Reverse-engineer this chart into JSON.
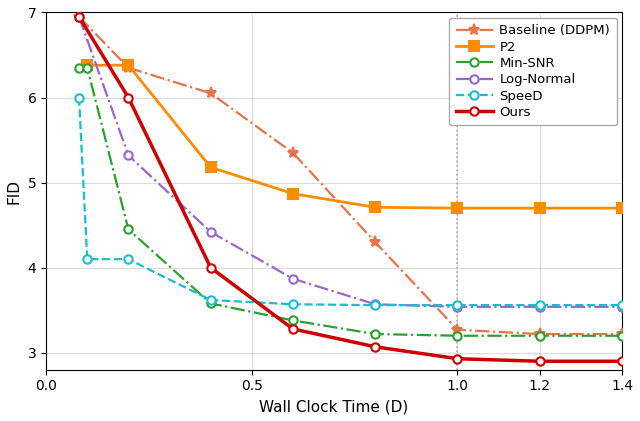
{
  "title": "",
  "xlabel": "Wall Clock Time (D)",
  "ylabel": "FID",
  "xlim": [
    0.0,
    1.4
  ],
  "ylim": [
    2.8,
    7.0
  ],
  "yticks": [
    3,
    4,
    5,
    6,
    7
  ],
  "xticks": [
    0.0,
    0.5,
    1.0,
    1.2,
    1.4
  ],
  "vline_x": 1.0,
  "series": [
    {
      "label": "Baseline (DDPM)",
      "color": "#E8734A",
      "linestyle": "-.",
      "marker": "*",
      "markersize": 8,
      "linewidth": 1.6,
      "markerfilled": true,
      "x": [
        0.08,
        0.2,
        0.4,
        0.6,
        0.8,
        1.0,
        1.2,
        1.4
      ],
      "y": [
        6.95,
        6.35,
        6.05,
        5.35,
        4.3,
        3.27,
        3.22,
        3.22
      ]
    },
    {
      "label": "P2",
      "color": "#FF8C00",
      "linestyle": "-",
      "marker": "s",
      "markersize": 7,
      "linewidth": 2.0,
      "markerfilled": true,
      "x": [
        0.1,
        0.2,
        0.4,
        0.6,
        0.8,
        1.0,
        1.2,
        1.4
      ],
      "y": [
        6.38,
        6.38,
        5.18,
        4.87,
        4.71,
        4.7,
        4.7,
        4.7
      ]
    },
    {
      "label": "Min-SNR",
      "color": "#2CA02C",
      "linestyle": "-.",
      "marker": "o",
      "markersize": 6,
      "linewidth": 1.6,
      "markerfilled": false,
      "x": [
        0.08,
        0.1,
        0.2,
        0.4,
        0.6,
        0.8,
        1.0,
        1.2,
        1.4
      ],
      "y": [
        6.35,
        6.35,
        4.45,
        3.58,
        3.38,
        3.22,
        3.2,
        3.2,
        3.2
      ]
    },
    {
      "label": "Log-Normal",
      "color": "#9966CC",
      "linestyle": "-.",
      "marker": "o",
      "markersize": 6,
      "linewidth": 1.6,
      "markerfilled": false,
      "x": [
        0.08,
        0.2,
        0.4,
        0.6,
        0.8,
        1.0,
        1.2,
        1.4
      ],
      "y": [
        6.95,
        5.32,
        4.42,
        3.87,
        3.57,
        3.54,
        3.54,
        3.54
      ]
    },
    {
      "label": "SpeeD",
      "color": "#17BECF",
      "linestyle": "--",
      "marker": "o",
      "markersize": 6,
      "linewidth": 1.6,
      "markerfilled": false,
      "x": [
        0.08,
        0.1,
        0.2,
        0.4,
        0.6,
        0.8,
        1.0,
        1.2,
        1.4
      ],
      "y": [
        6.0,
        4.1,
        4.1,
        3.62,
        3.57,
        3.56,
        3.56,
        3.56,
        3.56
      ]
    },
    {
      "label": "Ours",
      "color": "#CC0000",
      "linestyle": "-",
      "marker": "o",
      "markersize": 6,
      "linewidth": 2.5,
      "markerfilled": false,
      "x": [
        0.08,
        0.2,
        0.4,
        0.6,
        0.8,
        1.0,
        1.2,
        1.4
      ],
      "y": [
        6.95,
        6.0,
        4.0,
        3.28,
        3.07,
        2.93,
        2.9,
        2.9
      ]
    }
  ],
  "legend_loc": "upper right",
  "figsize": [
    6.4,
    4.21
  ],
  "dpi": 100,
  "spine_color": "#000000",
  "grid_color": "#cccccc",
  "background_color": "#ffffff"
}
